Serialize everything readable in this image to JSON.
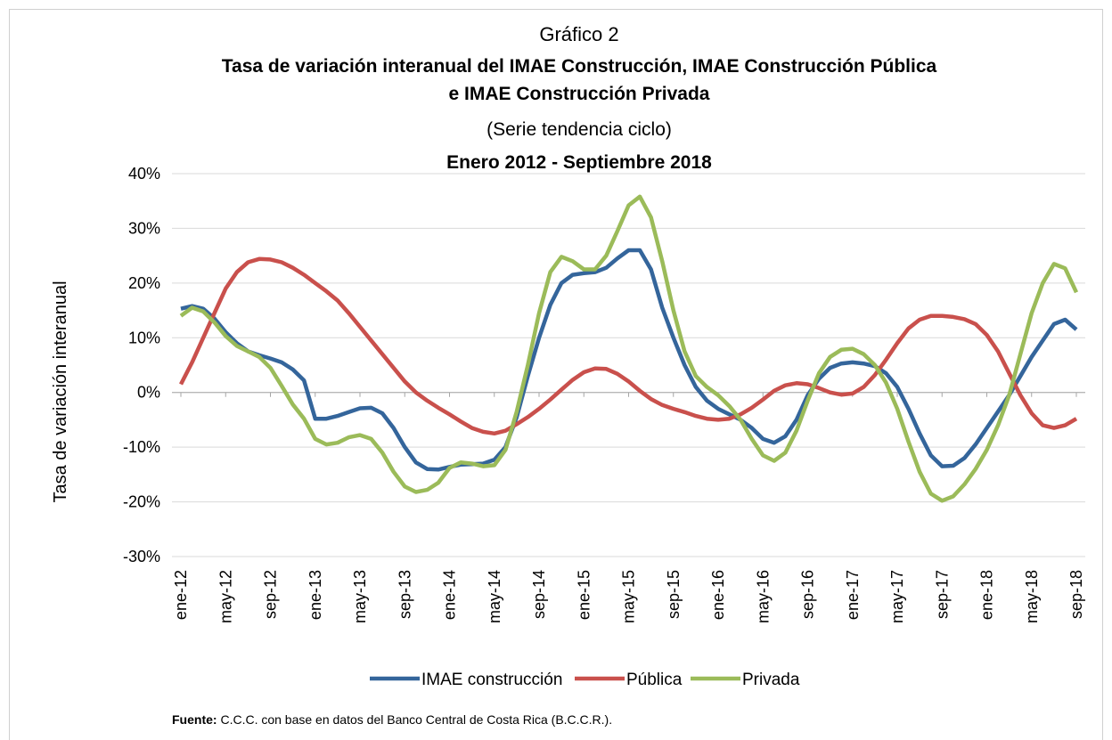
{
  "chart_data": {
    "type": "line",
    "title": "Gráfico 2",
    "subtitle_lines": [
      "Tasa de variación interanual del IMAE Construcción, IMAE Construcción Pública",
      "e IMAE Construcción Privada",
      "(Serie tendencia ciclo)",
      "Enero 2012 - Septiembre 2018"
    ],
    "y_label": "Tasa de variación interanual",
    "source_label": "Fuente:",
    "source": "C.C.C. con base en datos del Banco Central de Costa Rica (B.C.C.R.).",
    "categories": [
      "ene-12",
      null,
      null,
      null,
      "may-12",
      null,
      null,
      null,
      "sep-12",
      null,
      null,
      null,
      "ene-13",
      null,
      null,
      null,
      "may-13",
      null,
      null,
      null,
      "sep-13",
      null,
      null,
      null,
      "ene-14",
      null,
      null,
      null,
      "may-14",
      null,
      null,
      null,
      "sep-14",
      null,
      null,
      null,
      "ene-15",
      null,
      null,
      null,
      "may-15",
      null,
      null,
      null,
      "sep-15",
      null,
      null,
      null,
      "ene-16",
      null,
      null,
      null,
      "may-16",
      null,
      null,
      null,
      "sep-16",
      null,
      null,
      null,
      "ene-17",
      null,
      null,
      null,
      "may-17",
      null,
      null,
      null,
      "sep-17",
      null,
      null,
      null,
      "ene-18",
      null,
      null,
      null,
      "may-18",
      null,
      null,
      null,
      "sep-18"
    ],
    "series": [
      {
        "name": "IMAE construcción",
        "color": "#34659b",
        "values": [
          15.3,
          15.8,
          15.3,
          13.5,
          11,
          9,
          7.5,
          6.8,
          6.2,
          5.5,
          4.2,
          2.2,
          -4.8,
          -4.8,
          -4.3,
          -3.6,
          -2.9,
          -2.8,
          -3.8,
          -6.5,
          -10,
          -12.8,
          -14,
          -14.1,
          -13.6,
          -13.2,
          -13.1,
          -13,
          -12.3,
          -10,
          -4.5,
          3,
          10,
          16,
          20,
          21.5,
          21.8,
          22,
          22.8,
          24.5,
          26,
          26,
          22.5,
          15.5,
          10,
          5,
          1,
          -1.5,
          -3,
          -4,
          -5,
          -6.5,
          -8.5,
          -9.2,
          -8,
          -5,
          -0.5,
          2.5,
          4.5,
          5.3,
          5.5,
          5.3,
          4.8,
          3.5,
          1,
          -3,
          -7.5,
          -11.5,
          -13.5,
          -13.4,
          -12,
          -9.5,
          -6.5,
          -3.5,
          -0.5,
          3,
          6.5,
          9.5,
          12.5,
          13.3,
          11.5
        ]
      },
      {
        "name": "Pública",
        "color": "#c9504c",
        "values": [
          1.5,
          5.5,
          10,
          14.5,
          19,
          22,
          23.8,
          24.4,
          24.3,
          23.8,
          22.8,
          21.5,
          20,
          18.5,
          16.8,
          14.5,
          12,
          9.5,
          7,
          4.5,
          2,
          0,
          -1.5,
          -2.8,
          -4,
          -5.3,
          -6.5,
          -7.2,
          -7.5,
          -7,
          -5.8,
          -4.5,
          -3,
          -1.3,
          0.5,
          2.3,
          3.7,
          4.4,
          4.3,
          3.4,
          2,
          0.3,
          -1.2,
          -2.3,
          -3,
          -3.6,
          -4.3,
          -4.8,
          -5,
          -4.8,
          -4,
          -2.8,
          -1.3,
          0.3,
          1.3,
          1.7,
          1.5,
          0.8,
          0,
          -0.4,
          -0.2,
          1,
          3.2,
          6,
          9,
          11.7,
          13.3,
          14,
          14,
          13.8,
          13.4,
          12.5,
          10.5,
          7.5,
          3.5,
          -0.5,
          -3.8,
          -6,
          -6.5,
          -6,
          -4.8
        ]
      },
      {
        "name": "Privada",
        "color": "#9bbb59",
        "values": [
          14,
          15.5,
          14.8,
          12.8,
          10.3,
          8.5,
          7.5,
          6.5,
          4.5,
          1.2,
          -2.2,
          -4.8,
          -8.5,
          -9.5,
          -9.2,
          -8.2,
          -7.8,
          -8.5,
          -11,
          -14.5,
          -17.2,
          -18.2,
          -17.8,
          -16.5,
          -13.8,
          -12.8,
          -13,
          -13.5,
          -13.3,
          -10.5,
          -3.5,
          5,
          14.5,
          22,
          24.8,
          24,
          22.5,
          22.5,
          25,
          29.5,
          34.2,
          35.8,
          32,
          24,
          15,
          7.5,
          3,
          1,
          -0.5,
          -2.5,
          -5,
          -8.5,
          -11.5,
          -12.5,
          -11,
          -7,
          -1.5,
          3.5,
          6.5,
          7.8,
          8,
          7,
          5,
          1.8,
          -3,
          -9,
          -14.5,
          -18.5,
          -19.8,
          -19,
          -16.8,
          -14,
          -10.5,
          -6,
          -0.5,
          7,
          14.5,
          20,
          23.5,
          22.7,
          18.3
        ]
      }
    ],
    "ylim": [
      -30,
      40
    ],
    "yticks": [
      {
        "value": -30,
        "label": "-30%"
      },
      {
        "value": -20,
        "label": "-20%"
      },
      {
        "value": -10,
        "label": "-10%"
      },
      {
        "value": 0,
        "label": "0%"
      },
      {
        "value": 10,
        "label": "10%"
      },
      {
        "value": 20,
        "label": "20%"
      },
      {
        "value": 30,
        "label": "30%"
      },
      {
        "value": 40,
        "label": "40%"
      }
    ],
    "grid": true,
    "legend": "bottom"
  }
}
